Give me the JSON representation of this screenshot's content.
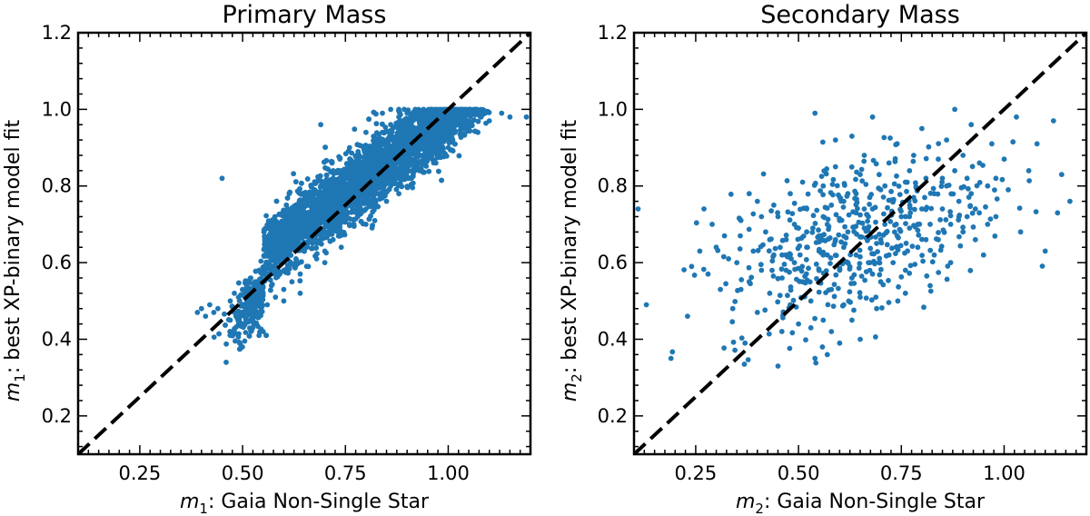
{
  "colors": {
    "points": "#1f77b4",
    "diagonal": "#000000",
    "frame": "#000000"
  },
  "chart_data": [
    {
      "type": "scatter",
      "title": "Primary Mass",
      "xlabel": {
        "symbol": "m",
        "sub": "1",
        "text": ": Gaia Non-Single Star"
      },
      "ylabel": {
        "symbol": "m",
        "sub": "1",
        "text": ": best XP-binary model fit"
      },
      "xlim": [
        0.1,
        1.2
      ],
      "ylim": [
        0.1,
        1.2
      ],
      "xticks": [
        0.25,
        0.5,
        0.75,
        1.0
      ],
      "xtick_labels": [
        "0.25",
        "0.50",
        "0.75",
        "1.00"
      ],
      "yticks": [
        0.2,
        0.4,
        0.6,
        0.8,
        1.0,
        1.2
      ],
      "ytick_labels": [
        "0.2",
        "0.4",
        "0.6",
        "0.8",
        "1.0",
        "1.2"
      ],
      "diagonal": [
        [
          0.1,
          0.1
        ],
        [
          1.2,
          1.2
        ]
      ],
      "approx_point_count": 12000,
      "distribution_note": "dense band along y = 0.18 + 0.8x (spread ~0.04), saturating at y = 1.0 for x > 0.95",
      "points": [
        [
          0.39,
          0.47
        ],
        [
          0.4,
          0.48
        ],
        [
          0.41,
          0.46
        ],
        [
          0.42,
          0.49
        ],
        [
          0.43,
          0.47
        ],
        [
          0.44,
          0.48
        ],
        [
          0.45,
          0.82
        ],
        [
          0.46,
          0.34
        ],
        [
          0.47,
          0.5
        ],
        [
          0.47,
          0.45
        ],
        [
          0.48,
          0.52
        ],
        [
          0.49,
          0.51
        ],
        [
          0.49,
          0.44
        ],
        [
          0.5,
          0.53
        ],
        [
          0.5,
          0.47
        ],
        [
          0.51,
          0.54
        ],
        [
          0.51,
          0.49
        ],
        [
          0.52,
          0.56
        ],
        [
          0.52,
          0.45
        ],
        [
          0.53,
          0.55
        ],
        [
          0.53,
          0.5
        ],
        [
          0.54,
          0.58
        ],
        [
          0.54,
          0.47
        ],
        [
          0.55,
          0.57
        ],
        [
          0.55,
          0.52
        ],
        [
          0.55,
          0.42
        ],
        [
          0.56,
          0.6
        ],
        [
          0.56,
          0.49
        ],
        [
          0.57,
          0.62
        ],
        [
          0.57,
          0.54
        ],
        [
          0.58,
          0.66
        ],
        [
          0.58,
          0.51
        ],
        [
          0.59,
          0.63
        ],
        [
          0.59,
          0.57
        ],
        [
          0.6,
          0.69
        ],
        [
          0.6,
          0.53
        ],
        [
          0.61,
          0.65
        ],
        [
          0.61,
          0.59
        ],
        [
          0.62,
          0.71
        ],
        [
          0.62,
          0.55
        ],
        [
          0.63,
          0.67
        ],
        [
          0.63,
          0.61
        ],
        [
          0.64,
          0.74
        ],
        [
          0.64,
          0.57
        ],
        [
          0.65,
          0.7
        ],
        [
          0.65,
          0.63
        ],
        [
          0.66,
          0.76
        ],
        [
          0.66,
          0.59
        ],
        [
          0.67,
          0.72
        ],
        [
          0.67,
          0.65
        ],
        [
          0.68,
          0.78
        ],
        [
          0.68,
          0.61
        ],
        [
          0.69,
          0.74
        ],
        [
          0.69,
          0.67
        ],
        [
          0.7,
          0.8
        ],
        [
          0.7,
          0.63
        ],
        [
          0.71,
          0.76
        ],
        [
          0.71,
          0.69
        ],
        [
          0.72,
          0.82
        ],
        [
          0.72,
          0.66
        ],
        [
          0.73,
          0.78
        ],
        [
          0.73,
          0.71
        ],
        [
          0.74,
          0.84
        ],
        [
          0.74,
          0.68
        ],
        [
          0.75,
          0.8
        ],
        [
          0.75,
          0.73
        ],
        [
          0.76,
          0.86
        ],
        [
          0.76,
          0.7
        ],
        [
          0.77,
          0.82
        ],
        [
          0.77,
          0.75
        ],
        [
          0.78,
          0.88
        ],
        [
          0.78,
          0.72
        ],
        [
          0.79,
          0.84
        ],
        [
          0.79,
          0.77
        ],
        [
          0.8,
          0.9
        ],
        [
          0.8,
          0.74
        ],
        [
          0.81,
          0.86
        ],
        [
          0.81,
          0.79
        ],
        [
          0.82,
          0.92
        ],
        [
          0.82,
          0.76
        ],
        [
          0.83,
          0.88
        ],
        [
          0.83,
          0.81
        ],
        [
          0.84,
          0.94
        ],
        [
          0.84,
          0.78
        ],
        [
          0.85,
          0.9
        ],
        [
          0.85,
          0.83
        ],
        [
          0.86,
          0.96
        ],
        [
          0.86,
          0.8
        ],
        [
          0.87,
          0.92
        ],
        [
          0.87,
          0.85
        ],
        [
          0.88,
          0.98
        ],
        [
          0.88,
          0.82
        ],
        [
          0.89,
          0.94
        ],
        [
          0.89,
          0.87
        ],
        [
          0.9,
          0.99
        ],
        [
          0.9,
          0.84
        ],
        [
          0.91,
          0.96
        ],
        [
          0.91,
          0.89
        ],
        [
          0.92,
          1.0
        ],
        [
          0.92,
          0.86
        ],
        [
          0.93,
          0.98
        ],
        [
          0.93,
          0.91
        ],
        [
          0.94,
          1.0
        ],
        [
          0.94,
          0.88
        ],
        [
          0.95,
          0.99
        ],
        [
          0.95,
          0.93
        ],
        [
          0.96,
          1.0
        ],
        [
          0.96,
          0.9
        ],
        [
          0.97,
          1.0
        ],
        [
          0.97,
          0.95
        ],
        [
          0.98,
          1.0
        ],
        [
          0.98,
          0.92
        ],
        [
          0.99,
          1.0
        ],
        [
          0.99,
          0.97
        ],
        [
          1.0,
          1.0
        ],
        [
          1.0,
          0.95
        ],
        [
          1.01,
          1.0
        ],
        [
          1.02,
          0.99
        ],
        [
          1.03,
          1.0
        ],
        [
          1.04,
          0.98
        ],
        [
          1.05,
          1.0
        ],
        [
          1.06,
          0.99
        ],
        [
          1.07,
          1.0
        ],
        [
          1.08,
          0.98
        ],
        [
          1.09,
          0.99
        ],
        [
          1.1,
          0.97
        ],
        [
          1.13,
          0.99
        ],
        [
          1.15,
          0.98
        ],
        [
          1.19,
          0.98
        ],
        [
          0.52,
          0.42
        ],
        [
          0.54,
          0.41
        ],
        [
          0.6,
          0.5
        ],
        [
          0.64,
          0.52
        ],
        [
          0.7,
          0.6
        ],
        [
          0.74,
          0.64
        ],
        [
          0.8,
          0.7
        ],
        [
          0.85,
          0.76
        ],
        [
          0.88,
          0.78
        ],
        [
          0.91,
          0.82
        ],
        [
          0.93,
          0.84
        ],
        [
          0.97,
          0.86
        ],
        [
          1.0,
          0.9
        ],
        [
          0.56,
          0.64
        ],
        [
          0.62,
          0.7
        ],
        [
          0.66,
          0.78
        ],
        [
          0.69,
          0.8
        ],
        [
          0.72,
          0.84
        ],
        [
          0.76,
          0.9
        ],
        [
          0.8,
          0.94
        ],
        [
          0.84,
          0.99
        ],
        [
          0.86,
          1.0
        ],
        [
          0.88,
          1.0
        ],
        [
          0.69,
          0.96
        ]
      ]
    },
    {
      "type": "scatter",
      "title": "Secondary Mass",
      "xlabel": {
        "symbol": "m",
        "sub": "2",
        "text": ": Gaia Non-Single Star"
      },
      "ylabel": {
        "symbol": "m",
        "sub": "2",
        "text": ": best XP-binary model fit"
      },
      "xlim": [
        0.1,
        1.2
      ],
      "ylim": [
        0.1,
        1.2
      ],
      "xticks": [
        0.25,
        0.5,
        0.75,
        1.0
      ],
      "xtick_labels": [
        "0.25",
        "0.50",
        "0.75",
        "1.00"
      ],
      "yticks": [
        0.2,
        0.4,
        0.6,
        0.8,
        1.0,
        1.2
      ],
      "ytick_labels": [
        "0.2",
        "0.4",
        "0.6",
        "0.8",
        "1.0",
        "1.2"
      ],
      "diagonal": [
        [
          0.1,
          0.1
        ],
        [
          1.2,
          1.2
        ]
      ],
      "approx_point_count": 600,
      "distribution_note": "broad cloud centred near (0.62, 0.67), weak positive correlation",
      "points": [
        [
          0.11,
          0.74
        ],
        [
          0.13,
          0.49
        ],
        [
          0.19,
          0.35
        ],
        [
          0.23,
          0.46
        ],
        [
          0.24,
          0.59
        ],
        [
          0.27,
          0.74
        ],
        [
          0.28,
          0.57
        ],
        [
          0.3,
          0.64
        ],
        [
          0.31,
          0.53
        ],
        [
          0.32,
          0.67
        ],
        [
          0.34,
          0.48
        ],
        [
          0.35,
          0.6
        ],
        [
          0.36,
          0.71
        ],
        [
          0.37,
          0.39
        ],
        [
          0.38,
          0.55
        ],
        [
          0.39,
          0.63
        ],
        [
          0.4,
          0.47
        ],
        [
          0.4,
          0.76
        ],
        [
          0.41,
          0.58
        ],
        [
          0.42,
          0.68
        ],
        [
          0.43,
          0.52
        ],
        [
          0.44,
          0.62
        ],
        [
          0.45,
          0.33
        ],
        [
          0.45,
          0.72
        ],
        [
          0.46,
          0.56
        ],
        [
          0.47,
          0.66
        ],
        [
          0.48,
          0.49
        ],
        [
          0.48,
          0.78
        ],
        [
          0.49,
          0.6
        ],
        [
          0.5,
          0.69
        ],
        [
          0.5,
          0.44
        ],
        [
          0.51,
          0.55
        ],
        [
          0.52,
          0.74
        ],
        [
          0.52,
          0.64
        ],
        [
          0.53,
          0.5
        ],
        [
          0.54,
          0.35
        ],
        [
          0.54,
          0.99
        ],
        [
          0.55,
          0.67
        ],
        [
          0.55,
          0.58
        ],
        [
          0.56,
          0.8
        ],
        [
          0.56,
          0.45
        ],
        [
          0.57,
          0.7
        ],
        [
          0.57,
          0.62
        ],
        [
          0.58,
          0.53
        ],
        [
          0.58,
          0.75
        ],
        [
          0.59,
          0.66
        ],
        [
          0.59,
          0.92
        ],
        [
          0.6,
          0.58
        ],
        [
          0.6,
          0.71
        ],
        [
          0.61,
          0.49
        ],
        [
          0.61,
          0.64
        ],
        [
          0.62,
          0.78
        ],
        [
          0.62,
          0.68
        ],
        [
          0.63,
          0.56
        ],
        [
          0.63,
          0.93
        ],
        [
          0.64,
          0.73
        ],
        [
          0.64,
          0.62
        ],
        [
          0.65,
          0.83
        ],
        [
          0.65,
          0.51
        ],
        [
          0.66,
          0.69
        ],
        [
          0.66,
          0.88
        ],
        [
          0.67,
          0.6
        ],
        [
          0.68,
          0.74
        ],
        [
          0.68,
          0.98
        ],
        [
          0.69,
          0.65
        ],
        [
          0.7,
          0.79
        ],
        [
          0.7,
          0.55
        ],
        [
          0.71,
          0.7
        ],
        [
          0.72,
          0.86
        ],
        [
          0.72,
          0.62
        ],
        [
          0.73,
          0.76
        ],
        [
          0.74,
          0.67
        ],
        [
          0.74,
          0.91
        ],
        [
          0.75,
          0.72
        ],
        [
          0.76,
          0.58
        ],
        [
          0.76,
          0.81
        ],
        [
          0.77,
          0.69
        ],
        [
          0.78,
          0.77
        ],
        [
          0.78,
          0.88
        ],
        [
          0.79,
          0.64
        ],
        [
          0.8,
          0.74
        ],
        [
          0.8,
          0.95
        ],
        [
          0.81,
          0.82
        ],
        [
          0.82,
          0.7
        ],
        [
          0.82,
          0.54
        ],
        [
          0.83,
          0.78
        ],
        [
          0.84,
          0.87
        ],
        [
          0.84,
          0.66
        ],
        [
          0.85,
          0.74
        ],
        [
          0.86,
          0.92
        ],
        [
          0.86,
          0.8
        ],
        [
          0.87,
          0.7
        ],
        [
          0.88,
          0.84
        ],
        [
          0.88,
          1.0
        ],
        [
          0.89,
          0.76
        ],
        [
          0.9,
          0.88
        ],
        [
          0.9,
          0.68
        ],
        [
          0.91,
          0.82
        ],
        [
          0.92,
          0.96
        ],
        [
          0.93,
          0.74
        ],
        [
          0.94,
          0.86
        ],
        [
          0.95,
          0.62
        ],
        [
          0.96,
          0.8
        ],
        [
          0.97,
          0.91
        ],
        [
          0.98,
          0.72
        ],
        [
          1.0,
          0.87
        ],
        [
          1.01,
          0.79
        ],
        [
          1.03,
          0.98
        ],
        [
          1.04,
          0.68
        ],
        [
          1.06,
          0.84
        ],
        [
          1.08,
          0.91
        ],
        [
          1.1,
          0.63
        ],
        [
          1.12,
          0.97
        ],
        [
          1.13,
          0.73
        ],
        [
          1.14,
          0.83
        ],
        [
          1.16,
          0.76
        ],
        [
          0.58,
          0.42
        ],
        [
          0.6,
          0.39
        ],
        [
          0.63,
          0.45
        ],
        [
          0.57,
          0.36
        ],
        [
          0.53,
          0.43
        ],
        [
          0.65,
          0.4
        ],
        [
          0.69,
          0.48
        ],
        [
          0.47,
          0.58
        ],
        [
          0.43,
          0.66
        ],
        [
          0.36,
          0.53
        ],
        [
          0.33,
          0.61
        ],
        [
          0.29,
          0.7
        ],
        [
          0.26,
          0.63
        ],
        [
          0.44,
          0.75
        ],
        [
          0.51,
          0.81
        ],
        [
          0.59,
          0.85
        ],
        [
          0.66,
          0.74
        ],
        [
          0.71,
          0.8
        ],
        [
          0.79,
          0.7
        ],
        [
          0.83,
          0.62
        ],
        [
          0.87,
          0.6
        ],
        [
          0.91,
          0.72
        ],
        [
          0.98,
          0.82
        ],
        [
          0.93,
          0.66
        ],
        [
          0.76,
          0.52
        ],
        [
          0.68,
          0.57
        ],
        [
          0.62,
          0.6
        ],
        [
          0.55,
          0.63
        ],
        [
          0.49,
          0.7
        ],
        [
          0.41,
          0.72
        ],
        [
          0.38,
          0.78
        ],
        [
          0.56,
          0.72
        ],
        [
          0.64,
          0.78
        ],
        [
          0.73,
          0.6
        ],
        [
          0.81,
          0.66
        ],
        [
          0.89,
          0.72
        ],
        [
          0.96,
          0.7
        ],
        [
          0.52,
          0.68
        ],
        [
          0.46,
          0.62
        ],
        [
          0.61,
          0.76
        ],
        [
          0.7,
          0.66
        ],
        [
          0.77,
          0.84
        ],
        [
          0.85,
          0.82
        ],
        [
          0.92,
          0.78
        ]
      ]
    }
  ]
}
